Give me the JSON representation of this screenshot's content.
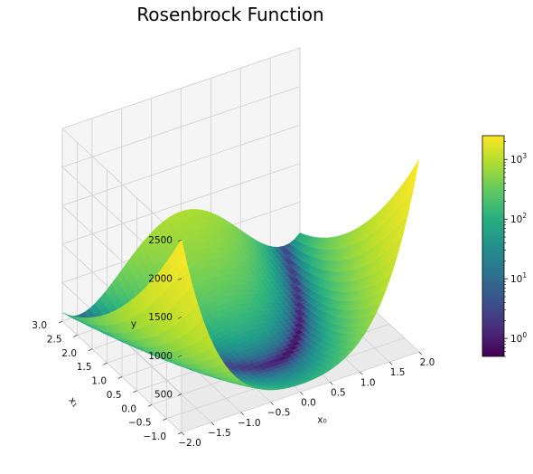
{
  "chart_data": {
    "type": "surface3d",
    "title": "Rosenbrock Function",
    "function": "(1 - x0)^2 + 100*(x1 - x0^2)^2",
    "x0": {
      "label": "x₀",
      "range": [
        -2.0,
        2.0
      ],
      "ticks": [
        "−2.0",
        "−1.5",
        "−1.0",
        "−0.5",
        "0.0",
        "0.5",
        "1.0",
        "1.5",
        "2.0"
      ]
    },
    "x1": {
      "label": "x₁",
      "range": [
        -1.0,
        3.0
      ],
      "ticks": [
        "−1.0",
        "−0.5",
        "0.0",
        "0.5",
        "1.0",
        "1.5",
        "2.0",
        "2.5",
        "3.0"
      ]
    },
    "y": {
      "label": "y",
      "range": [
        0,
        2500
      ],
      "ticks": [
        "500",
        "1000",
        "1500",
        "2000",
        "2500"
      ]
    },
    "colormap": "viridis",
    "color_scale": "log",
    "colorbar": {
      "range": [
        0.5,
        2500
      ],
      "ticks": [
        {
          "exp": "0",
          "value": 1
        },
        {
          "exp": "1",
          "value": 10
        },
        {
          "exp": "2",
          "value": 100
        },
        {
          "exp": "3",
          "value": 1000
        }
      ]
    },
    "grid": true
  }
}
